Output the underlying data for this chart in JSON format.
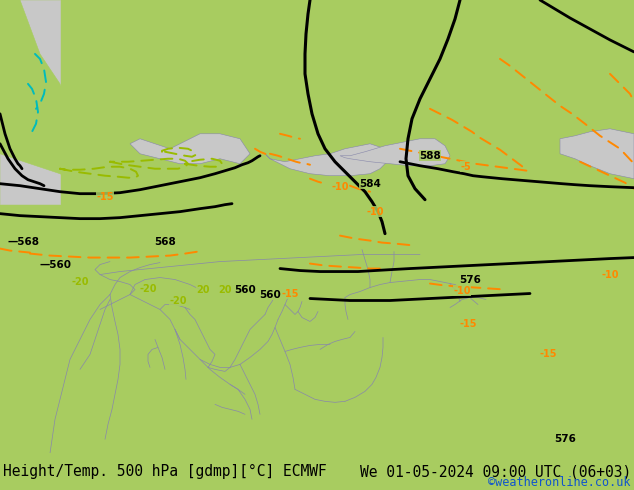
{
  "title_left": "Height/Temp. 500 hPa [gdmp][°C] ECMWF",
  "title_right": "We 01-05-2024 09:00 UTC (06+03)",
  "copyright": "©weatheronline.co.uk",
  "bg_color": "#a8cc60",
  "sea_color": "#c8c8c8",
  "border_color": "#8888aa",
  "bottom_bar_color": "#ffffff",
  "bottom_text_color": "#000000",
  "copyright_color": "#1155cc",
  "font_size_title": 10.5,
  "font_size_copyright": 8.5,
  "orange": "#ff8800",
  "lime": "#99bb00",
  "cyan": "#00bbbb",
  "black": "#000000"
}
